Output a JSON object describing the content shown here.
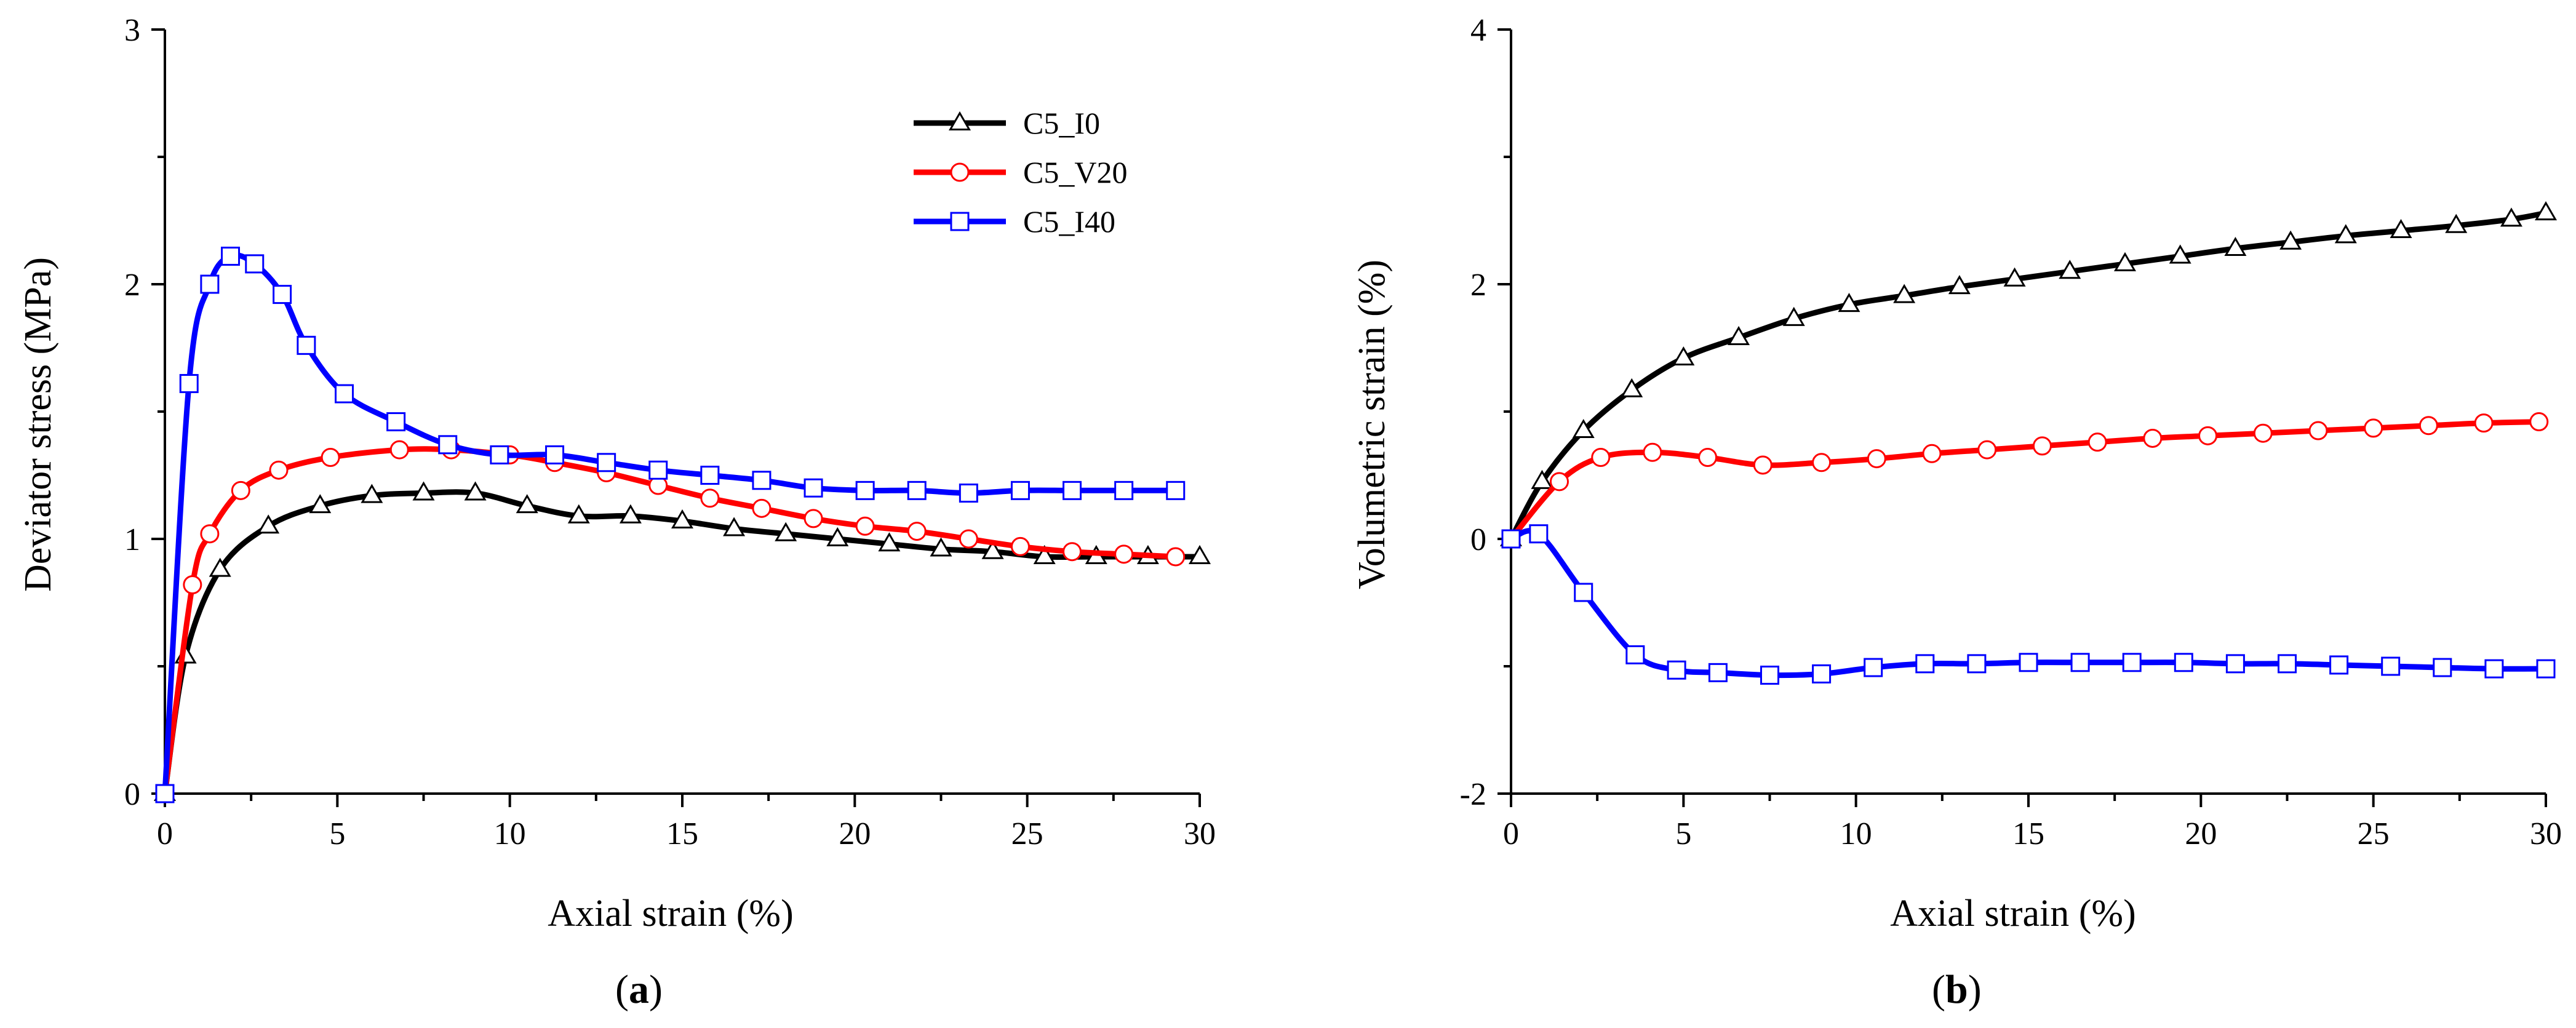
{
  "colors": {
    "C5_I0": "#000000",
    "C5_V20": "#ff0000",
    "C5_I40": "#0000ff"
  },
  "chart_data": [
    {
      "type": "line",
      "panel_label": "a",
      "xlabel": "Axial strain (%)",
      "ylabel": "Deviator stress (MPa)",
      "xlim": [
        0,
        30
      ],
      "ylim": [
        0,
        3
      ],
      "xticks": [
        0,
        5,
        10,
        15,
        20,
        25,
        30
      ],
      "yticks": [
        0,
        1,
        2,
        3
      ],
      "grid": false,
      "legend": "top-center",
      "series": [
        {
          "name": "C5_I0",
          "marker": "triangle",
          "x": [
            0,
            0.6,
            1.6,
            3,
            4.5,
            6,
            7.5,
            9,
            10.5,
            12,
            13.5,
            15,
            16.5,
            18,
            19.5,
            21,
            22.5,
            24,
            25.5,
            27,
            28.5,
            30
          ],
          "y": [
            0,
            0.54,
            0.88,
            1.05,
            1.13,
            1.17,
            1.18,
            1.18,
            1.13,
            1.09,
            1.09,
            1.07,
            1.04,
            1.02,
            1.0,
            0.98,
            0.96,
            0.95,
            0.93,
            0.93,
            0.93,
            0.93
          ]
        },
        {
          "name": "C5_V20",
          "marker": "circle",
          "x": [
            0,
            0.8,
            1.3,
            2.2,
            3.3,
            4.8,
            6.8,
            8.3,
            10,
            11.3,
            12.8,
            14.3,
            15.8,
            17.3,
            18.8,
            20.3,
            21.8,
            23.3,
            24.8,
            26.3,
            27.8,
            29.3
          ],
          "y": [
            0,
            0.82,
            1.02,
            1.19,
            1.27,
            1.32,
            1.35,
            1.35,
            1.33,
            1.3,
            1.26,
            1.21,
            1.16,
            1.12,
            1.08,
            1.05,
            1.03,
            1.0,
            0.97,
            0.95,
            0.94,
            0.93
          ]
        },
        {
          "name": "C5_I40",
          "marker": "square",
          "x": [
            0,
            0.7,
            1.3,
            1.9,
            2.6,
            3.4,
            4.1,
            5.2,
            6.7,
            8.2,
            9.7,
            11.3,
            12.8,
            14.3,
            15.8,
            17.3,
            18.8,
            20.3,
            21.8,
            23.3,
            24.8,
            26.3,
            27.8,
            29.3
          ],
          "y": [
            0,
            1.61,
            2.0,
            2.11,
            2.08,
            1.96,
            1.76,
            1.57,
            1.46,
            1.37,
            1.33,
            1.33,
            1.3,
            1.27,
            1.25,
            1.23,
            1.2,
            1.19,
            1.19,
            1.18,
            1.19,
            1.19,
            1.19,
            1.19
          ]
        }
      ]
    },
    {
      "type": "line",
      "panel_label": "b",
      "xlabel": "Axial strain (%)",
      "ylabel": "Volumetric strain (%)",
      "xlim": [
        0,
        30
      ],
      "ylim": [
        -2,
        4
      ],
      "xticks": [
        0,
        5,
        10,
        15,
        20,
        25,
        30
      ],
      "yticks": [
        -2,
        0,
        2,
        4
      ],
      "grid": false,
      "legend": "none",
      "series": [
        {
          "name": "C5_I0",
          "marker": "triangle",
          "x": [
            0,
            0.9,
            2.1,
            3.5,
            5,
            6.6,
            8.2,
            9.8,
            11.4,
            13,
            14.6,
            16.2,
            17.8,
            19.4,
            21,
            22.6,
            24.2,
            25.8,
            27.4,
            29,
            30
          ],
          "y": [
            0,
            0.45,
            0.85,
            1.17,
            1.42,
            1.58,
            1.73,
            1.84,
            1.91,
            1.98,
            2.04,
            2.1,
            2.16,
            2.22,
            2.28,
            2.33,
            2.38,
            2.42,
            2.46,
            2.51,
            2.56
          ]
        },
        {
          "name": "C5_V20",
          "marker": "circle",
          "x": [
            0,
            1.4,
            2.6,
            4.1,
            5.7,
            7.3,
            9,
            10.6,
            12.2,
            13.8,
            15.4,
            17,
            18.6,
            20.2,
            21.8,
            23.4,
            25,
            26.6,
            28.2,
            29.8
          ],
          "y": [
            0,
            0.45,
            0.64,
            0.68,
            0.64,
            0.58,
            0.6,
            0.63,
            0.67,
            0.7,
            0.73,
            0.76,
            0.79,
            0.81,
            0.83,
            0.85,
            0.87,
            0.89,
            0.91,
            0.92
          ]
        },
        {
          "name": "C5_I40",
          "marker": "square",
          "x": [
            0,
            0.8,
            2.1,
            3.6,
            4.8,
            6,
            7.5,
            9,
            10.5,
            12,
            13.5,
            15,
            16.5,
            18,
            19.5,
            21,
            22.5,
            24,
            25.5,
            27,
            28.5,
            30
          ],
          "y": [
            0,
            0.04,
            -0.42,
            -0.91,
            -1.03,
            -1.05,
            -1.07,
            -1.06,
            -1.01,
            -0.98,
            -0.98,
            -0.97,
            -0.97,
            -0.97,
            -0.97,
            -0.98,
            -0.98,
            -0.99,
            -1.0,
            -1.01,
            -1.02,
            -1.02
          ]
        }
      ]
    }
  ]
}
